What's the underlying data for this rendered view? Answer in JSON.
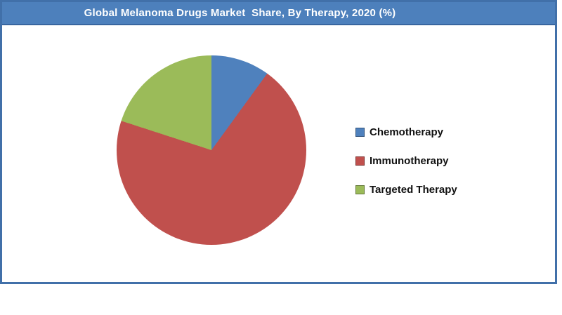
{
  "header": {
    "title": "Global Melanoma Drugs Market  Share, By Therapy, 2020 (%)"
  },
  "chart_data": {
    "type": "pie",
    "title": "Global Melanoma Drugs Market  Share, By Therapy, 2020 (%)",
    "unit": "%",
    "start_angle_deg": 0,
    "direction": "clockwise",
    "legend_position": "right",
    "slices": [
      {
        "label": "Chemotherapy",
        "value": 10,
        "color": "#4f81bd"
      },
      {
        "label": "Immunotherapy",
        "value": 70,
        "color": "#c0504d"
      },
      {
        "label": "Targeted Therapy",
        "value": 20,
        "color": "#9bbb59"
      }
    ]
  },
  "colors": {
    "header_bg": "#4d80bc",
    "header_border": "#38659f",
    "frame_border": "#4170a9",
    "chart_bg": "#ffffff",
    "legend_text": "#111111",
    "title_text": "#ffffff"
  }
}
